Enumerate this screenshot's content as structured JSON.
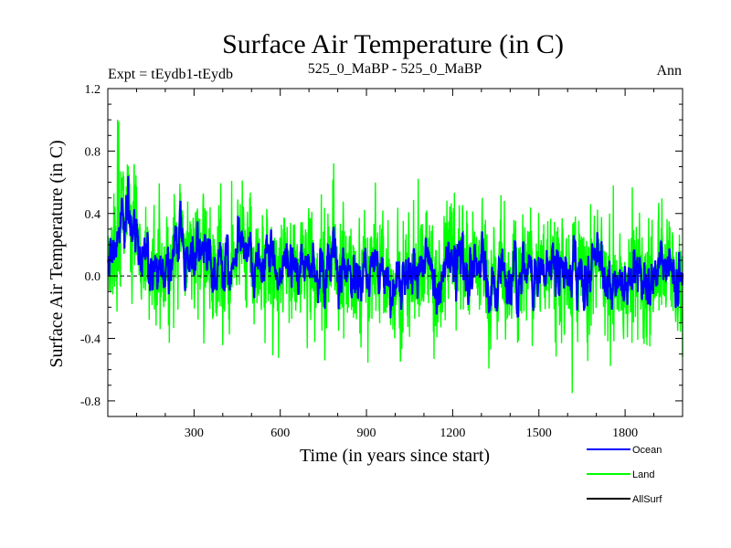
{
  "chart_data": {
    "type": "line",
    "title": "Surface Air Temperature (in C)",
    "subtitle_left": "Expt = tEydb1-tEydb",
    "subtitle_center": "525_0_MaBP - 525_0_MaBP",
    "subtitle_right": "Ann",
    "xlabel": "Time (in years since start)",
    "ylabel": "Surface Air Temperature (in C)",
    "xlim": [
      0,
      2000
    ],
    "ylim": [
      -0.9,
      1.2
    ],
    "xticks": [
      300,
      600,
      900,
      1200,
      1500,
      1800
    ],
    "xtick_labels": [
      "300",
      "600",
      "900",
      "1200",
      "1500",
      "1800"
    ],
    "yticks": [
      -0.8,
      -0.4,
      0.0,
      0.4,
      0.8,
      1.2
    ],
    "ytick_labels": [
      "-0.8",
      "-0.4",
      "0.0",
      "0.4",
      "0.8",
      "1.2"
    ],
    "zero_line": true,
    "legend_position": "bottom-right",
    "series": [
      {
        "name": "Land",
        "color": "#00ff00",
        "generated": true,
        "approx_mean": 0.1,
        "approx_std": 0.22,
        "approx_range": [
          -0.75,
          1.0
        ],
        "early_warm_peak": 1.0
      },
      {
        "name": "Ocean",
        "color": "#0000ff",
        "generated": true,
        "approx_mean": 0.07,
        "approx_std": 0.12,
        "approx_range": [
          -0.3,
          0.65
        ],
        "early_warm_peak": 0.65
      },
      {
        "name": "AllSurf",
        "color": "#000000",
        "generated": false
      }
    ]
  },
  "legend": {
    "items": [
      {
        "label": "Ocean",
        "color": "#0000ff"
      },
      {
        "label": "Land",
        "color": "#00ff00"
      },
      {
        "label": "AllSurf",
        "color": "#000000"
      }
    ]
  }
}
